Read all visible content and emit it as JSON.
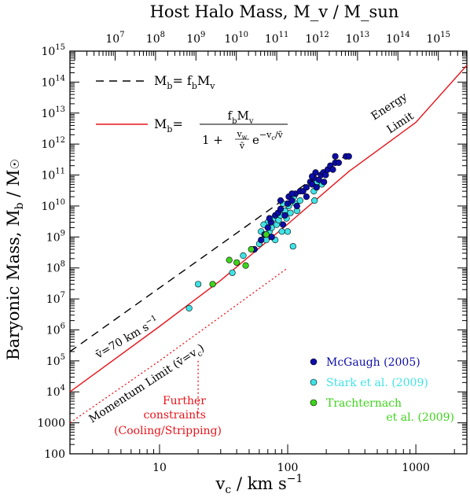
{
  "chart_data": {
    "type": "scatter",
    "title": "",
    "xlabel": "v_c / km s^-1",
    "ylabel": "Baryonic Mass, M_b / M_sun",
    "top_label": "Host Halo Mass, M_v / M_sun",
    "xscale": "log",
    "yscale": "log",
    "xlim": [
      2,
      2500
    ],
    "ylim": [
      100,
      1000000000000000.0
    ],
    "x_ticks": [
      {
        "v": 10,
        "label": "10"
      },
      {
        "v": 100,
        "label": "100"
      },
      {
        "v": 1000,
        "label": "1000"
      }
    ],
    "y_ticks": [
      {
        "e": 2,
        "label": "100"
      },
      {
        "e": 3,
        "label": "1000"
      },
      {
        "e": 4,
        "label": "10",
        "sup": "4"
      },
      {
        "e": 5,
        "label": "10",
        "sup": "5"
      },
      {
        "e": 6,
        "label": "10",
        "sup": "6"
      },
      {
        "e": 7,
        "label": "10",
        "sup": "7"
      },
      {
        "e": 8,
        "label": "10",
        "sup": "8"
      },
      {
        "e": 9,
        "label": "10",
        "sup": "9"
      },
      {
        "e": 10,
        "label": "10",
        "sup": "10"
      },
      {
        "e": 11,
        "label": "10",
        "sup": "11"
      },
      {
        "e": 12,
        "label": "10",
        "sup": "12"
      },
      {
        "e": 13,
        "label": "10",
        "sup": "13"
      },
      {
        "e": 14,
        "label": "10",
        "sup": "14"
      },
      {
        "e": 15,
        "label": "10",
        "sup": "15"
      }
    ],
    "top_ticks": [
      {
        "e": 7,
        "label": "10",
        "sup": "7"
      },
      {
        "e": 8,
        "label": "10",
        "sup": "8"
      },
      {
        "e": 9,
        "label": "10",
        "sup": "9"
      },
      {
        "e": 10,
        "label": "10",
        "sup": "10"
      },
      {
        "e": 11,
        "label": "10",
        "sup": "11"
      },
      {
        "e": 12,
        "label": "10",
        "sup": "12"
      },
      {
        "e": 13,
        "label": "10",
        "sup": "13"
      },
      {
        "e": 14,
        "label": "10",
        "sup": "14"
      },
      {
        "e": 15,
        "label": "10",
        "sup": "15"
      }
    ],
    "lines": [
      {
        "name": "Mb = fb Mv",
        "style": "dashed",
        "color": "#000000",
        "points": [
          [
            2,
            200000.0
          ],
          [
            300,
            500000000000.0
          ]
        ]
      },
      {
        "name": "Mb = fb Mv / (1 + (vw/v) e^(-vc/v))",
        "style": "solid",
        "color": "#e8141b",
        "points": [
          [
            2,
            10000.0
          ],
          [
            10,
            1300000.0
          ],
          [
            30,
            40000000.0
          ],
          [
            100,
            2600000000.0
          ],
          [
            300,
            130000000000.0
          ],
          [
            1000,
            5000000000000.0
          ],
          [
            2500,
            350000000000000.0
          ]
        ]
      },
      {
        "name": "Momentum Limit",
        "style": "dotted",
        "color": "#e8141b",
        "points": [
          [
            2,
            1000.0
          ],
          [
            10,
            100000.0
          ],
          [
            30,
            2700000.0
          ],
          [
            100,
            100000000.0
          ]
        ]
      },
      {
        "name": "Cooling/Stripping limit",
        "style": "dotted",
        "color": "#e8141b",
        "points": [
          [
            20,
            2000.0
          ],
          [
            20,
            100000.0
          ]
        ]
      }
    ],
    "series": [
      {
        "name": "McGaugh (2005)",
        "color": "#0d0da8",
        "points": [
          [
            55,
            400000000.0
          ],
          [
            62,
            800000000.0
          ],
          [
            66,
            1200000000.0
          ],
          [
            70,
            2000000000.0
          ],
          [
            74,
            3000000000.0
          ],
          [
            75,
            1000000000.0
          ],
          [
            80,
            5000000000.0
          ],
          [
            84,
            6000000000.0
          ],
          [
            88,
            8000000000.0
          ],
          [
            95,
            5000000000.0
          ],
          [
            100,
            12000000000.0
          ],
          [
            102,
            20000000000.0
          ],
          [
            108,
            15000000000.0
          ],
          [
            115,
            25000000000.0
          ],
          [
            125,
            30000000000.0
          ],
          [
            132,
            30000000000.0
          ],
          [
            140,
            40000000000.0
          ],
          [
            150,
            60000000000.0
          ],
          [
            155,
            50000000000.0
          ],
          [
            160,
            80000000000.0
          ],
          [
            168,
            40000000000.0
          ],
          [
            175,
            70000000000.0
          ],
          [
            182,
            100000000000.0
          ],
          [
            190,
            120000000000.0
          ],
          [
            198,
            100000000000.0
          ],
          [
            205,
            150000000000.0
          ],
          [
            215,
            200000000000.0
          ],
          [
            225,
            150000000000.0
          ],
          [
            235,
            250000000000.0
          ],
          [
            250,
            250000000000.0
          ],
          [
            285,
            400000000000.0
          ],
          [
            300,
            400000000000.0
          ],
          [
            72,
            4000000000.0
          ],
          [
            92,
            2500000000.0
          ],
          [
            108,
            25000000000.0
          ],
          [
            118,
            10000000000.0
          ],
          [
            140,
            20000000000.0
          ],
          [
            165,
            120000000000.0
          ],
          [
            192,
            60000000000.0
          ],
          [
            235,
            400000000000.0
          ],
          [
            88,
            15000000000.0
          ],
          [
            155,
            90000000000.0
          ]
        ]
      },
      {
        "name": "Stark et al. (2009)",
        "color": "#3fe3e6",
        "points": [
          [
            17,
            5000000.0
          ],
          [
            20,
            30000000.0
          ],
          [
            37,
            70000000.0
          ],
          [
            45,
            250000000.0
          ],
          [
            55,
            400000000.0
          ],
          [
            60,
            600000000.0
          ],
          [
            62,
            1500000000.0
          ],
          [
            68,
            800000000.0
          ],
          [
            70,
            3000000000.0
          ],
          [
            72,
            1500000000.0
          ],
          [
            75,
            2000000000.0
          ],
          [
            78,
            4000000000.0
          ],
          [
            80,
            800000000.0
          ],
          [
            82,
            2500000000.0
          ],
          [
            85,
            3500000000.0
          ],
          [
            88,
            5000000000.0
          ],
          [
            90,
            1500000000.0
          ],
          [
            95,
            7000000000.0
          ],
          [
            98,
            4000000000.0
          ],
          [
            102,
            10000000000.0
          ],
          [
            105,
            6000000000.0
          ],
          [
            108,
            25000000000.0
          ],
          [
            112,
            20000000000.0
          ],
          [
            115,
            12000000000.0
          ],
          [
            125,
            15000000000.0
          ],
          [
            160,
            30000000000.0
          ],
          [
            162,
            15000000000.0
          ],
          [
            185,
            50000000000.0
          ],
          [
            190,
            120000000000.0
          ],
          [
            65,
            2500000000.0
          ],
          [
            92,
            12000000000.0
          ],
          [
            100,
            1500000000.0
          ],
          [
            118,
            7000000000.0
          ],
          [
            170,
            60000000000.0
          ],
          [
            110,
            500000000.0
          ]
        ]
      },
      {
        "name": "Trachternach et al. (2009)",
        "color": "#3ed41b",
        "points": [
          [
            26,
            30000000.0
          ],
          [
            35,
            180000000.0
          ],
          [
            40,
            150000000.0
          ],
          [
            47,
            120000000.0
          ],
          [
            52,
            400000000.0
          ],
          [
            68,
            1200000000.0
          ]
        ]
      }
    ],
    "legend": {
      "placement": "bottom-right",
      "items": [
        {
          "label": "McGaugh (2005)",
          "color": "#0d0da8"
        },
        {
          "label": "Stark et al. (2009)",
          "color": "#3fe3e6"
        },
        {
          "label": "Trachternach",
          "label2": "et al. (2009)",
          "color": "#3ed41b"
        }
      ]
    },
    "annotations": {
      "energy_limit_1": "Energy",
      "energy_limit_2": "Limit",
      "momentum_limit": "Momentum Limit",
      "velocity_70": "=70 km s",
      "further_1": "Further",
      "further_2": "constraints",
      "further_3": "(Cooling/Stripping)"
    },
    "colors": {
      "red": "#e8141b",
      "black": "#000000"
    }
  }
}
